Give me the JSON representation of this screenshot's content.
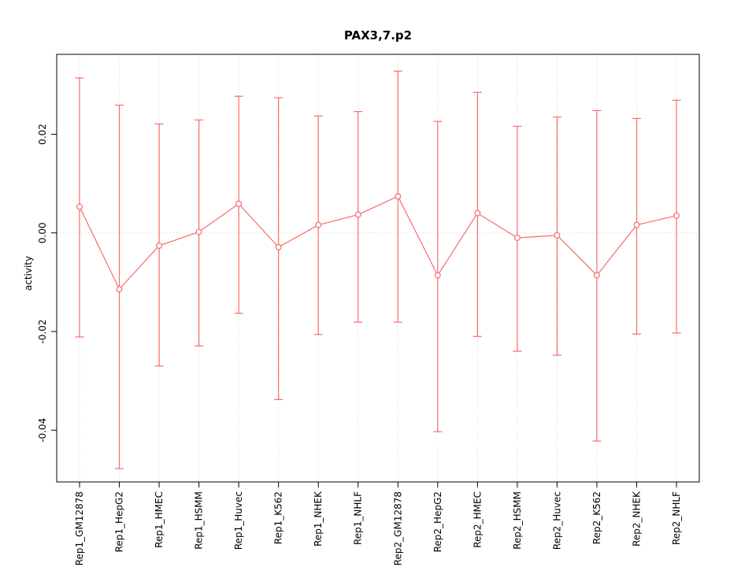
{
  "chart_data": {
    "type": "line",
    "title": "PAX3,7.p2",
    "xlabel": "",
    "ylabel": "activity",
    "categories": [
      "Rep1_GM12878",
      "Rep1_HepG2",
      "Rep1_HMEC",
      "Rep1_HSMM",
      "Rep1_Huvec",
      "Rep1_K562",
      "Rep1_NHEK",
      "Rep1_NHLF",
      "Rep2_GM12878",
      "Rep2_HepG2",
      "Rep2_HMEC",
      "Rep2_HSMM",
      "Rep2_Huvec",
      "Rep2_K562",
      "Rep2_NHEK",
      "Rep2_NHLF"
    ],
    "values": [
      0.0053,
      -0.0114,
      -0.0026,
      0.0002,
      0.0059,
      -0.0029,
      0.0016,
      0.0037,
      0.0074,
      -0.0086,
      0.004,
      -0.001,
      -0.0005,
      -0.0086,
      0.0016,
      0.0035
    ],
    "upper": [
      0.0314,
      0.0259,
      0.0221,
      0.0229,
      0.0277,
      0.0274,
      0.0237,
      0.0246,
      0.0328,
      0.0226,
      0.0285,
      0.0216,
      0.0235,
      0.0248,
      0.0232,
      0.0269
    ],
    "lower": [
      -0.0211,
      -0.0478,
      -0.027,
      -0.0229,
      -0.0163,
      -0.0338,
      -0.0206,
      -0.0181,
      -0.0181,
      -0.0403,
      -0.021,
      -0.024,
      -0.0248,
      -0.0422,
      -0.0205,
      -0.0203
    ],
    "ytick_labels": [
      "0.02",
      "0.00",
      "-0.02",
      "-0.04"
    ],
    "ytick_values": [
      0.02,
      0.0,
      -0.02,
      -0.04
    ],
    "ylim": [
      -0.0505,
      0.0362
    ],
    "grid": "dotted vertical at each category, dotted horizontal at y=0",
    "legend": "none",
    "series_color": "#F96A6A",
    "grid_color": "#d4d4d4",
    "axis_color": "#000000"
  }
}
